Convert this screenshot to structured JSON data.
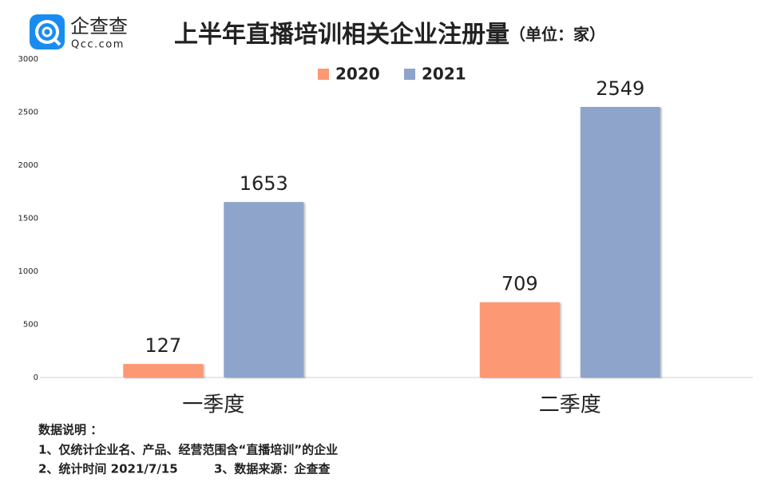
{
  "logo": {
    "name": "企查查",
    "site": "Qcc.com"
  },
  "chart_data": {
    "type": "bar",
    "title": "上半年直播培训相关企业注册量",
    "subtitle": "（单位：家）",
    "categories": [
      "一季度",
      "二季度"
    ],
    "series": [
      {
        "name": "2020",
        "color": "#fc9873",
        "values": [
          127,
          709
        ]
      },
      {
        "name": "2021",
        "color": "#8ea4cb",
        "values": [
          1653,
          2549
        ]
      }
    ],
    "ylim": [
      0,
      3000
    ],
    "yticks": [
      0,
      500,
      1000,
      1500,
      2000,
      2500,
      3000
    ],
    "grid": false,
    "legend": "top"
  },
  "notes": [
    "数据说明 ：",
    "1、仅统计企业名、产品、经营范围含“直播培训”的企业",
    "2、统计时间 2021/7/15",
    "3、数据来源：企查查"
  ]
}
